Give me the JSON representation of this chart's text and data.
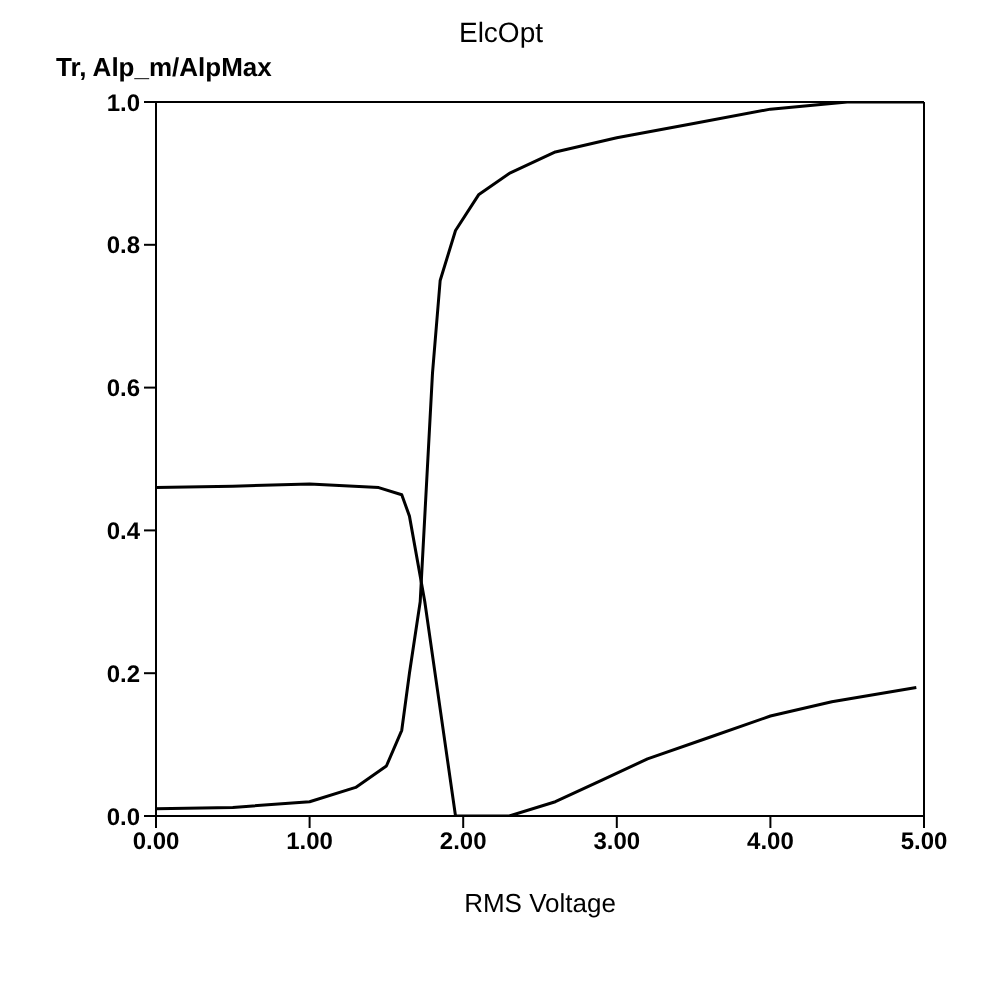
{
  "chart_data": {
    "type": "line",
    "title": "ElcOpt",
    "xlabel": "RMS Voltage",
    "ylabel": "Tr, Alp_m/AlpMax",
    "xlim": [
      0,
      5
    ],
    "xticks": [
      {
        "value": 0,
        "label": "0.00"
      },
      {
        "value": 1,
        "label": "1.00"
      },
      {
        "value": 2,
        "label": "2.00"
      },
      {
        "value": 3,
        "label": "3.00"
      },
      {
        "value": 4,
        "label": "4.00"
      },
      {
        "value": 5,
        "label": "5.00"
      }
    ],
    "ylim": [
      0,
      1
    ],
    "yticks": [
      {
        "value": 0,
        "label": "0.0"
      },
      {
        "value": 0.2,
        "label": "0.2"
      },
      {
        "value": 0.4,
        "label": "0.4"
      },
      {
        "value": 0.6,
        "label": "0.6"
      },
      {
        "value": 0.8,
        "label": "0.8"
      },
      {
        "value": 1,
        "label": "1.0"
      }
    ],
    "grid": false,
    "legend": false,
    "marker": "none",
    "line_style": "solid",
    "series": [
      {
        "color": "#000000",
        "x": [
          0,
          0.5,
          1.0,
          1.3,
          1.5,
          1.6,
          1.65,
          1.72,
          1.77,
          1.8,
          1.85,
          1.95,
          2.1,
          2.3,
          2.6,
          3.0,
          3.5,
          4.0,
          4.5,
          5.0
        ],
        "values": [
          0.01,
          0.012,
          0.02,
          0.04,
          0.07,
          0.12,
          0.2,
          0.3,
          0.5,
          0.62,
          0.75,
          0.82,
          0.87,
          0.9,
          0.93,
          0.95,
          0.97,
          0.99,
          1.0,
          1.0
        ]
      },
      {
        "color": "#000000",
        "x": [
          0,
          0.5,
          1.0,
          1.45,
          1.6,
          1.65,
          1.75,
          1.85,
          1.95,
          2.3,
          2.6,
          2.9,
          3.2,
          3.6,
          4.0,
          4.4,
          4.95
        ],
        "values": [
          0.46,
          0.462,
          0.465,
          0.46,
          0.45,
          0.42,
          0.3,
          0.15,
          0.0,
          0.0,
          0.02,
          0.05,
          0.08,
          0.11,
          0.14,
          0.16,
          0.18
        ]
      }
    ]
  }
}
